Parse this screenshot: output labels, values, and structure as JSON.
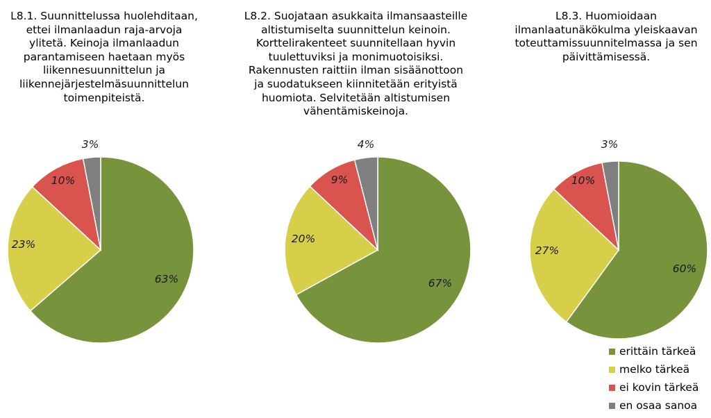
{
  "chart_data": [
    {
      "type": "pie",
      "title": "L8.1. Suunnittelussa huolehditaan, ettei ilmanlaadun raja-arvoja ylitetä. Keinoja ilmanlaadun parantamiseen haetaan myös liikennesuunnittelun ja liikennejärjestelmäsuunnittelun toimenpiteistä.",
      "title_lines": [
        "L8.1. Suunnittelussa huolehditaan,",
        "ettei ilmanlaadun raja-arvoja",
        "ylitetä. Keinoja ilmanlaadun",
        "parantamiseen haetaan myös",
        "liikennesuunnittelun ja",
        "liikennejärjestelmäsuunnittelun",
        "toimenpiteistä."
      ],
      "categories": [
        "erittäin tärkeä",
        "melko tärkeä",
        "ei kovin tärkeä",
        "en osaa sanoa"
      ],
      "values": [
        63,
        23,
        10,
        3
      ],
      "labels": [
        "63%",
        "23%",
        "10%",
        "3%"
      ]
    },
    {
      "type": "pie",
      "title": "L8.2. Suojataan asukkaita ilmansaasteille altistumiselta suunnittelun keinoin. Korttelirakenteet suunnitellaan hyvin tuulettuviksi ja monimuotoisiksi. Rakennusten raittiin ilman sisäänottoon ja suodatukseen kiinnitetään erityistä huomiota. Selvitetään altistumisen vähentämiskeinoja.",
      "title_lines": [
        "L8.2. Suojataan asukkaita ilmansaasteille",
        "altistumiselta suunnittelun keinoin.",
        "Korttelirakenteet suunnitellaan hyvin",
        "tuulettuviksi ja monimuotoisiksi.",
        "Rakennusten raittiin ilman sisäänottoon",
        "ja suodatukseen kiinnitetään erityistä",
        "huomiota. Selvitetään altistumisen",
        "vähentämiskeinoja."
      ],
      "categories": [
        "erittäin tärkeä",
        "melko tärkeä",
        "ei kovin tärkeä",
        "en osaa sanoa"
      ],
      "values": [
        67,
        20,
        9,
        4
      ],
      "labels": [
        "67%",
        "20%",
        "9%",
        "4%"
      ]
    },
    {
      "type": "pie",
      "title": "L8.3. Huomioidaan ilmanlaatunäkökulma yleiskaavan toteuttamissuunnitelmassa ja sen päivittämisessä.",
      "title_lines": [
        "L8.3. Huomioidaan",
        "ilmanlaatunäkökulma yleiskaavan",
        "toteuttamissuunnitelmassa ja sen",
        "päivittämisessä."
      ],
      "categories": [
        "erittäin tärkeä",
        "melko tärkeä",
        "ei kovin tärkeä",
        "en osaa sanoa"
      ],
      "values": [
        60,
        27,
        10,
        3
      ],
      "labels": [
        "60%",
        "27%",
        "10%",
        "3%"
      ]
    }
  ],
  "legend": {
    "placement": "bottom-right",
    "items": [
      {
        "label": "erittäin tärkeä",
        "color": "#77933C"
      },
      {
        "label": "melko tärkeä",
        "color": "#D7CE4A"
      },
      {
        "label": "ei kovin tärkeä",
        "color": "#D9534F"
      },
      {
        "label": "en osaa sanoa",
        "color": "#7F7F7F"
      }
    ]
  },
  "colors": [
    "#77933C",
    "#D7CE4A",
    "#D9534F",
    "#7F7F7F"
  ]
}
